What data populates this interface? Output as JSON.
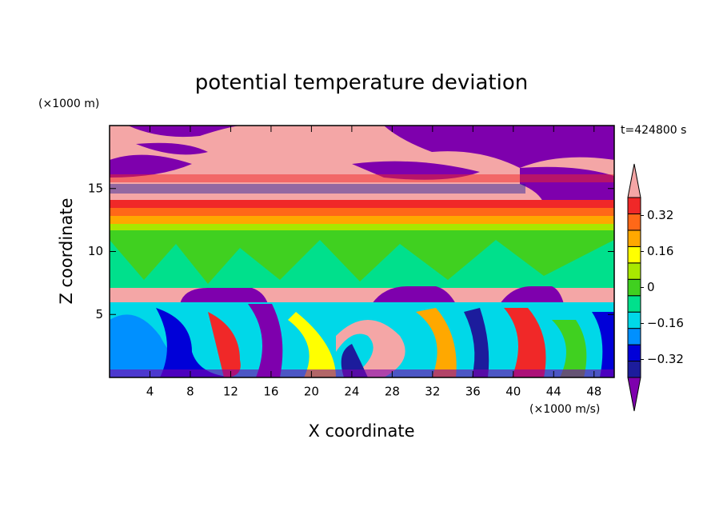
{
  "chart_data": {
    "type": "contour",
    "title": "potential temperature deviation",
    "x_label": "X coordinate",
    "y_label": "Z coordinate",
    "x_unit": "(×1000 m/s)",
    "y_unit": "(×1000 m)",
    "time_label": "t=424800 s",
    "xlim": [
      0,
      50
    ],
    "ylim": [
      0,
      20
    ],
    "xticks": [
      4,
      8,
      12,
      16,
      20,
      24,
      28,
      32,
      36,
      40,
      44,
      48
    ],
    "yticks": [
      5,
      10,
      15
    ],
    "colorbar": {
      "lim": [
        -0.4,
        0.4
      ],
      "ticks": [
        0.32,
        0.16,
        0,
        {
          "value": -0.16,
          "label": "−0.16"
        },
        {
          "value": -0.32,
          "label": "−0.32"
        }
      ],
      "colors": [
        "#7e00ad",
        "#1c1c9c",
        "#0000d8",
        "#0090ff",
        "#00d8e8",
        "#00e08c",
        "#40d020",
        "#a8e800",
        "#ffff00",
        "#ffa800",
        "#ff6818",
        "#f02828",
        "#f4a6a6"
      ]
    }
  }
}
